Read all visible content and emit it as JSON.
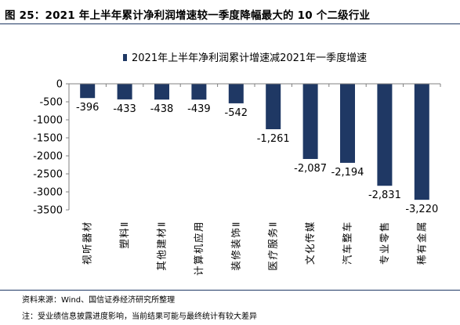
{
  "figure": {
    "title": "图 25：2021 年上半年累计净利润增速较一季度降幅最大的 10 个二级行业",
    "source": "资料来源：Wind、国信证券经济研究所整理",
    "note": "注：受业绩信息披露进度影响，当前结果可能与最终统计有较大差异"
  },
  "colors": {
    "bar": "#1f3864",
    "axis": "#808080",
    "rule": "#1f3864"
  },
  "chart_data": {
    "type": "bar",
    "categories": [
      "视听器材",
      "塑料Ⅱ",
      "其他建材Ⅱ",
      "计算机应用",
      "装修装饰Ⅱ",
      "医疗服务Ⅱ",
      "文化传媒",
      "汽车整车",
      "专业零售",
      "稀有金属"
    ],
    "series": [
      {
        "name": "2021年上半年净利润累计增速减2021年一季度增速",
        "values": [
          -396,
          -433,
          -438,
          -439,
          -542,
          -1261,
          -2087,
          -2194,
          -2831,
          -3220
        ]
      }
    ],
    "value_labels": [
      "-396",
      "-433",
      "-438",
      "-439",
      "-542",
      "-1,261",
      "-2,087",
      "-2,194",
      "-2,831",
      "-3,220"
    ],
    "y_ticks": [
      "0",
      "-500",
      "-1000",
      "-1500",
      "-2000",
      "-2500",
      "-3000",
      "-3500"
    ],
    "ylim": [
      -3500,
      0
    ],
    "legend_position": "top",
    "grid": false
  }
}
